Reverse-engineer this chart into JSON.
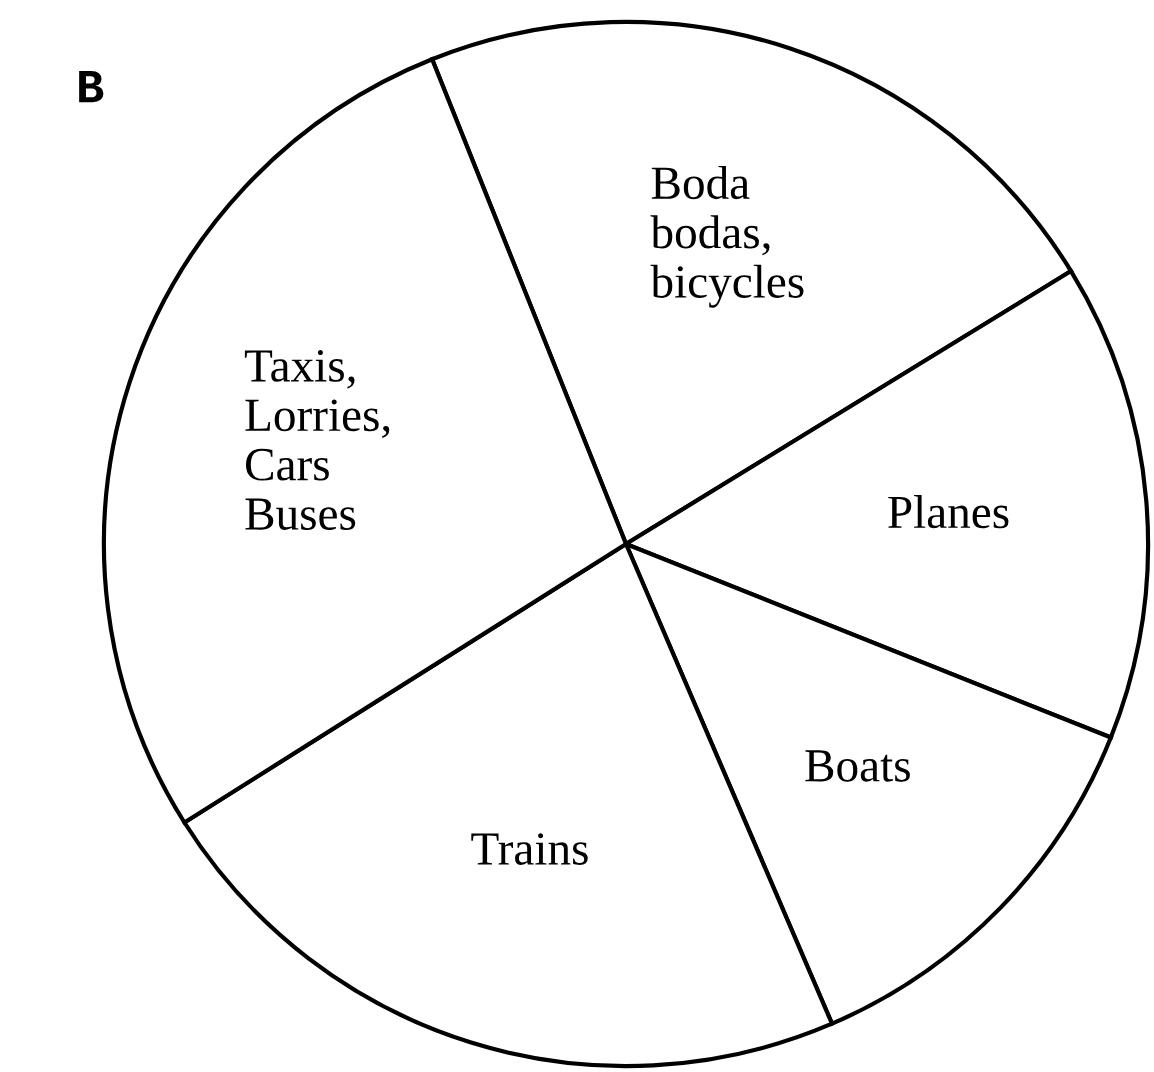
{
  "chart_data": {
    "type": "pie",
    "title": "B",
    "categories": [
      "Boda\nbodas,\nbicycles",
      "Planes",
      "Boats",
      "Trains",
      "Taxis,\nLorries,\nCars\nBuses"
    ],
    "values": [
      22.3,
      14.8,
      12.5,
      22.5,
      27.9
    ],
    "colors": [
      "#ffffff",
      "#ffffff",
      "#ffffff",
      "#ffffff",
      "#ffffff"
    ],
    "legend": false
  }
}
